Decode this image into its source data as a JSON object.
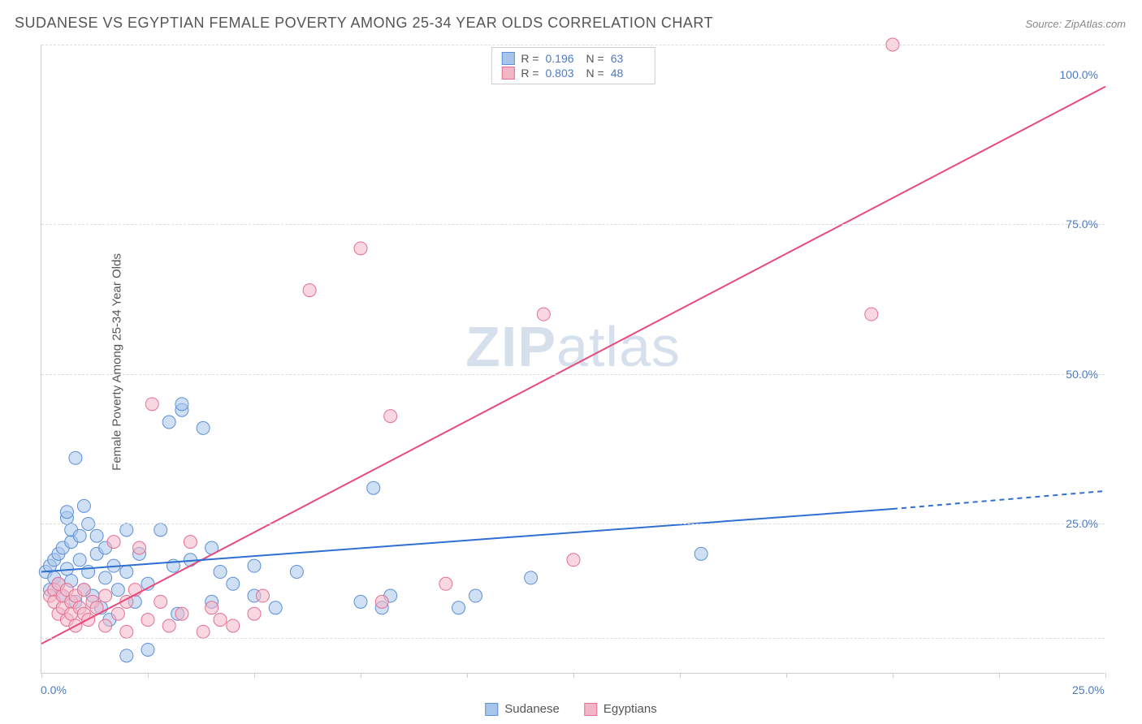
{
  "title": "SUDANESE VS EGYPTIAN FEMALE POVERTY AMONG 25-34 YEAR OLDS CORRELATION CHART",
  "source": "Source: ZipAtlas.com",
  "y_axis_label": "Female Poverty Among 25-34 Year Olds",
  "watermark_bold": "ZIP",
  "watermark_light": "atlas",
  "chart": {
    "type": "scatter",
    "xlim": [
      0,
      25
    ],
    "ylim": [
      0,
      105
    ],
    "x_ticks": [
      0,
      2.5,
      5,
      7.5,
      10,
      12.5,
      15,
      17.5,
      20,
      22.5,
      25
    ],
    "x_tick_labels": {
      "0": "0.0%",
      "25": "25.0%"
    },
    "y_ticks": [
      25,
      50,
      75,
      100
    ],
    "y_tick_labels": [
      "25.0%",
      "50.0%",
      "75.0%",
      "100.0%"
    ],
    "grid_dashed_y": [
      6,
      25,
      50,
      75,
      105
    ],
    "background_color": "#ffffff",
    "grid_color": "#dddddd",
    "axis_color": "#cccccc",
    "marker_radius": 8,
    "marker_opacity": 0.55,
    "series": [
      {
        "name": "Sudanese",
        "color_fill": "#a7c5eb",
        "color_stroke": "#5b8fd6",
        "R": "0.196",
        "N": "63",
        "trend": {
          "x1": 0,
          "y1": 17,
          "x2": 20,
          "y2": 27.5,
          "x2_ext": 25,
          "y2_ext": 30.5,
          "color": "#2e6fd1",
          "width": 2
        },
        "points": [
          [
            0.1,
            17
          ],
          [
            0.2,
            18
          ],
          [
            0.2,
            14
          ],
          [
            0.3,
            16
          ],
          [
            0.3,
            19
          ],
          [
            0.4,
            15
          ],
          [
            0.4,
            20
          ],
          [
            0.5,
            13
          ],
          [
            0.5,
            21
          ],
          [
            0.6,
            17.5
          ],
          [
            0.6,
            26
          ],
          [
            0.6,
            27
          ],
          [
            0.7,
            15.5
          ],
          [
            0.7,
            22
          ],
          [
            0.7,
            24
          ],
          [
            0.8,
            12
          ],
          [
            0.8,
            36
          ],
          [
            0.9,
            19
          ],
          [
            0.9,
            23
          ],
          [
            1.0,
            14
          ],
          [
            1.0,
            28
          ],
          [
            1.1,
            17
          ],
          [
            1.1,
            25
          ],
          [
            1.2,
            13
          ],
          [
            1.3,
            20
          ],
          [
            1.3,
            23
          ],
          [
            1.5,
            16
          ],
          [
            1.5,
            21
          ],
          [
            1.6,
            9
          ],
          [
            1.7,
            18
          ],
          [
            1.8,
            14
          ],
          [
            2.0,
            3
          ],
          [
            2.0,
            17
          ],
          [
            2.0,
            24
          ],
          [
            2.2,
            12
          ],
          [
            2.3,
            20
          ],
          [
            2.5,
            4
          ],
          [
            2.5,
            15
          ],
          [
            3.0,
            42
          ],
          [
            3.1,
            18
          ],
          [
            3.2,
            10
          ],
          [
            3.3,
            44
          ],
          [
            3.3,
            45
          ],
          [
            3.5,
            19
          ],
          [
            3.8,
            41
          ],
          [
            4.0,
            21
          ],
          [
            4.0,
            12
          ],
          [
            4.2,
            17
          ],
          [
            4.5,
            15
          ],
          [
            5.0,
            13
          ],
          [
            5.0,
            18
          ],
          [
            5.5,
            11
          ],
          [
            6.0,
            17
          ],
          [
            7.5,
            12
          ],
          [
            7.8,
            31
          ],
          [
            8.0,
            11
          ],
          [
            8.2,
            13
          ],
          [
            9.8,
            11
          ],
          [
            10.2,
            13
          ],
          [
            15.5,
            20
          ],
          [
            11.5,
            16
          ],
          [
            2.8,
            24
          ],
          [
            1.4,
            11
          ]
        ]
      },
      {
        "name": "Egyptians",
        "color_fill": "#f2b7c6",
        "color_stroke": "#e56f92",
        "R": "0.803",
        "N": "48",
        "trend": {
          "x1": 0,
          "y1": 5,
          "x2": 25,
          "y2": 98,
          "color": "#e84a7a",
          "width": 2
        },
        "points": [
          [
            0.2,
            13
          ],
          [
            0.3,
            14
          ],
          [
            0.3,
            12
          ],
          [
            0.4,
            15
          ],
          [
            0.4,
            10
          ],
          [
            0.5,
            11
          ],
          [
            0.5,
            13
          ],
          [
            0.6,
            9
          ],
          [
            0.6,
            14
          ],
          [
            0.7,
            12
          ],
          [
            0.7,
            10
          ],
          [
            0.8,
            13
          ],
          [
            0.8,
            8
          ],
          [
            0.9,
            11
          ],
          [
            1.0,
            10
          ],
          [
            1.0,
            14
          ],
          [
            1.1,
            9
          ],
          [
            1.2,
            12
          ],
          [
            1.3,
            11
          ],
          [
            1.5,
            13
          ],
          [
            1.5,
            8
          ],
          [
            1.7,
            22
          ],
          [
            1.8,
            10
          ],
          [
            2.0,
            12
          ],
          [
            2.0,
            7
          ],
          [
            2.2,
            14
          ],
          [
            2.3,
            21
          ],
          [
            2.5,
            9
          ],
          [
            2.6,
            45
          ],
          [
            2.8,
            12
          ],
          [
            3.0,
            8
          ],
          [
            3.3,
            10
          ],
          [
            3.5,
            22
          ],
          [
            3.8,
            7
          ],
          [
            4.0,
            11
          ],
          [
            4.2,
            9
          ],
          [
            4.5,
            8
          ],
          [
            5.0,
            10
          ],
          [
            6.3,
            64
          ],
          [
            7.5,
            71
          ],
          [
            8.0,
            12
          ],
          [
            8.2,
            43
          ],
          [
            9.5,
            15
          ],
          [
            11.8,
            60
          ],
          [
            12.5,
            19
          ],
          [
            19.5,
            60
          ],
          [
            20.0,
            105
          ],
          [
            5.2,
            13
          ]
        ]
      }
    ]
  },
  "stats_legend": {
    "R_label": "R =",
    "N_label": "N ="
  },
  "bottom_legend_labels": [
    "Sudanese",
    "Egyptians"
  ]
}
